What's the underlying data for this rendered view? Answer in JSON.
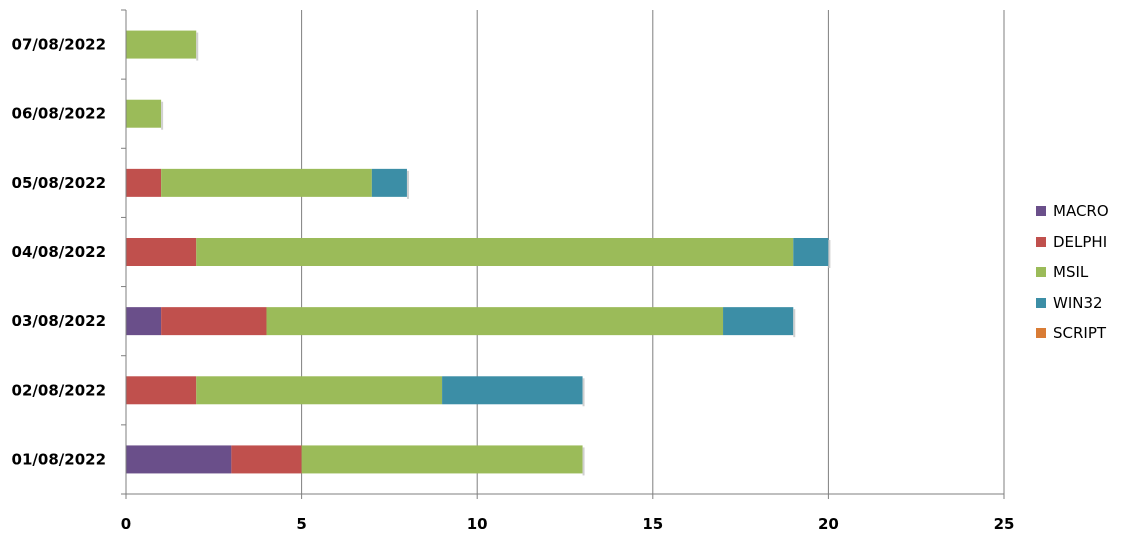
{
  "chart_data": {
    "type": "bar",
    "orientation": "horizontal",
    "stacked": true,
    "categories": [
      "01/08/2022",
      "02/08/2022",
      "03/08/2022",
      "04/08/2022",
      "05/08/2022",
      "06/08/2022",
      "07/08/2022"
    ],
    "series": [
      {
        "name": "MACRO",
        "color": "#6a4f8a",
        "values": [
          3,
          0,
          1,
          0,
          0,
          0,
          0
        ]
      },
      {
        "name": "DELPHI",
        "color": "#c0504d",
        "values": [
          2,
          2,
          3,
          2,
          1,
          0,
          0
        ]
      },
      {
        "name": "MSIL",
        "color": "#9bbb59",
        "values": [
          8,
          7,
          13,
          17,
          6,
          1,
          2
        ]
      },
      {
        "name": "WIN32",
        "color": "#3c8ea6",
        "values": [
          0,
          4,
          2,
          1,
          1,
          0,
          0
        ]
      },
      {
        "name": "SCRIPT",
        "color": "#d97c35",
        "values": [
          0,
          0,
          0,
          0,
          0,
          0,
          0
        ]
      }
    ],
    "xlim": [
      0,
      25
    ],
    "xticks": [
      "0",
      "5",
      "10",
      "15",
      "20",
      "25"
    ],
    "grid": true,
    "legend_position": "right"
  }
}
